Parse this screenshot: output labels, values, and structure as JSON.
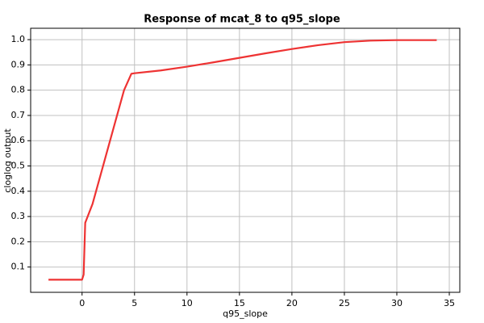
{
  "chart_data": {
    "type": "line",
    "title": "Response of mcat_8 to q95_slope",
    "xlabel": "q95_slope",
    "ylabel": "cloglog output",
    "x": [
      -3.2,
      0,
      0.15,
      0.3,
      1,
      2,
      3,
      4,
      4.7,
      5,
      7.5,
      10,
      12.5,
      15,
      17.5,
      20,
      22.5,
      25,
      27.5,
      30,
      33.8
    ],
    "series": [
      {
        "name": "cloglog output",
        "color": "#ee3333",
        "values": [
          0.05,
          0.05,
          0.07,
          0.275,
          0.35,
          0.5,
          0.65,
          0.8,
          0.865,
          0.867,
          0.878,
          0.893,
          0.91,
          0.928,
          0.946,
          0.963,
          0.978,
          0.99,
          0.996,
          0.998,
          0.998
        ]
      }
    ],
    "xlim": [
      -4.9,
      36
    ],
    "xticks": [
      0,
      5,
      10,
      15,
      20,
      25,
      30,
      35
    ],
    "ylim": [
      0,
      1.045
    ],
    "yticks": [
      0.1,
      0.2,
      0.3,
      0.4,
      0.5,
      0.6,
      0.7,
      0.8,
      0.9,
      {
        "value": 1,
        "label": "1.0"
      }
    ],
    "grid": true
  }
}
